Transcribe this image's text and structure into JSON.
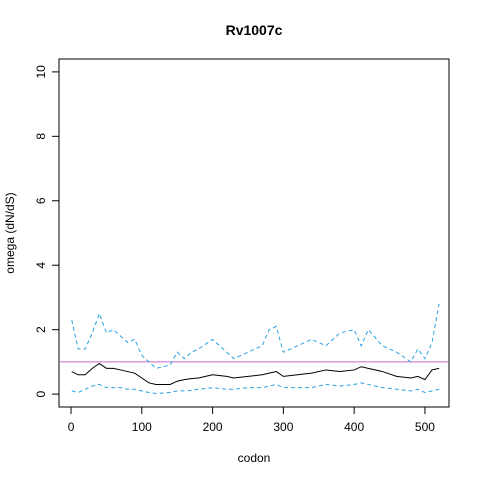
{
  "chart_data": {
    "type": "line",
    "title": "Rv1007c",
    "xlabel": "codon",
    "ylabel": "omega (dN/dS)",
    "x": [
      1,
      10,
      20,
      30,
      40,
      50,
      60,
      70,
      80,
      90,
      100,
      110,
      120,
      140,
      150,
      160,
      170,
      180,
      200,
      220,
      230,
      250,
      270,
      280,
      290,
      300,
      320,
      340,
      360,
      380,
      400,
      410,
      420,
      440,
      460,
      480,
      490,
      500,
      510,
      520
    ],
    "series": [
      {
        "color": "#29a3e0",
        "style": "dashed",
        "values": [
          2.3,
          1.4,
          1.4,
          1.9,
          2.5,
          1.9,
          2.0,
          1.8,
          1.6,
          1.7,
          1.2,
          1.0,
          0.8,
          0.9,
          1.3,
          1.1,
          1.3,
          1.4,
          1.7,
          1.3,
          1.1,
          1.3,
          1.5,
          2.0,
          2.1,
          1.3,
          1.5,
          1.7,
          1.5,
          1.9,
          2.0,
          1.5,
          2.0,
          1.5,
          1.3,
          1.0,
          1.4,
          1.1,
          1.6,
          2.8
        ]
      },
      {
        "color": "#000000",
        "style": "solid",
        "values": [
          0.7,
          0.6,
          0.6,
          0.8,
          0.95,
          0.8,
          0.8,
          0.75,
          0.7,
          0.65,
          0.5,
          0.35,
          0.3,
          0.3,
          0.4,
          0.45,
          0.48,
          0.5,
          0.6,
          0.55,
          0.5,
          0.55,
          0.6,
          0.65,
          0.7,
          0.55,
          0.6,
          0.65,
          0.75,
          0.7,
          0.75,
          0.85,
          0.8,
          0.7,
          0.55,
          0.5,
          0.55,
          0.45,
          0.75,
          0.8
        ]
      },
      {
        "color": "#29a3e0",
        "style": "dashed",
        "values": [
          0.1,
          0.05,
          0.15,
          0.25,
          0.3,
          0.2,
          0.2,
          0.2,
          0.15,
          0.15,
          0.1,
          0.05,
          0.02,
          0.05,
          0.1,
          0.1,
          0.12,
          0.15,
          0.2,
          0.15,
          0.15,
          0.2,
          0.2,
          0.25,
          0.3,
          0.2,
          0.2,
          0.2,
          0.3,
          0.25,
          0.3,
          0.35,
          0.3,
          0.2,
          0.15,
          0.1,
          0.15,
          0.05,
          0.1,
          0.15
        ]
      }
    ],
    "reference_line": {
      "y": 1,
      "color": "#cc66cc"
    },
    "xlim": [
      -17,
      534
    ],
    "ylim": [
      -0.4,
      10.4
    ],
    "xticks": [
      0,
      100,
      200,
      300,
      400,
      500
    ],
    "yticks": [
      0,
      2,
      4,
      6,
      8,
      10
    ]
  }
}
